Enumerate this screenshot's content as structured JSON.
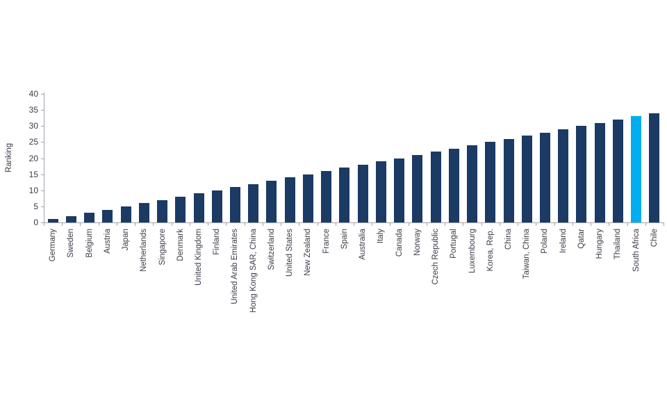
{
  "chart_data": {
    "type": "bar",
    "title": "",
    "xlabel": "",
    "ylabel": "Ranking",
    "ylim": [
      0,
      40
    ],
    "yticks": [
      0,
      5,
      10,
      15,
      20,
      25,
      30,
      35,
      40
    ],
    "grid": false,
    "legend_position": "none",
    "categories": [
      "Germany",
      "Sweden",
      "Belgium",
      "Austria",
      "Japan",
      "Netherlands",
      "Singapore",
      "Denmark",
      "United Kingdom",
      "Finland",
      "United Arab Emirates",
      "Hong Kong SAR, China",
      "Switzerland",
      "United States",
      "New Zealand",
      "France",
      "Spain",
      "Australia",
      "Italy",
      "Canada",
      "Norway",
      "Czech Republic",
      "Portugal",
      "Luxembourg",
      "Korea, Rep.",
      "China",
      "Taiwan, China",
      "Poland",
      "Ireland",
      "Qatar",
      "Hungary",
      "Thailand",
      "South Africa",
      "Chile"
    ],
    "values": [
      1,
      2,
      3,
      4,
      5,
      6,
      7,
      8,
      9,
      10,
      11,
      12,
      13,
      14,
      15,
      16,
      17,
      18,
      19,
      20,
      21,
      22,
      23,
      24,
      25,
      26,
      27,
      28,
      29,
      30,
      31,
      32,
      33,
      34
    ],
    "highlight_category": "South Africa",
    "highlight_index": 32,
    "bar_color": "#1B3A64",
    "highlight_color": "#00AEEF",
    "axis_color": "#A0A4AB",
    "text_color": "#363B45"
  }
}
